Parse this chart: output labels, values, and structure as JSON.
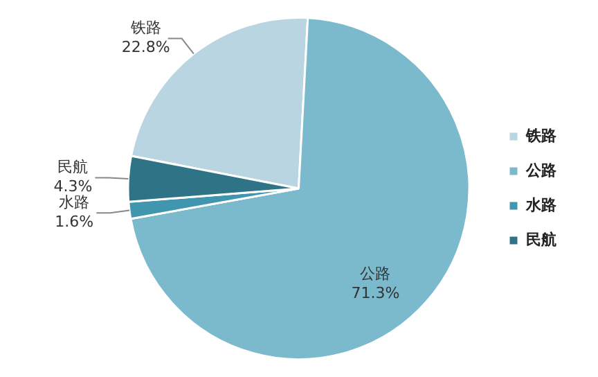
{
  "chart_data": {
    "type": "pie",
    "categories": [
      "铁路",
      "公路",
      "水路",
      "民航"
    ],
    "values": [
      22.8,
      71.3,
      1.6,
      4.3
    ],
    "colors": [
      "#b9d5e1",
      "#7bb9cd",
      "#3f96ae",
      "#2f7486"
    ],
    "value_labels": [
      "22.8%",
      "71.3%",
      "1.6%",
      "4.3%"
    ],
    "legend": "right"
  }
}
